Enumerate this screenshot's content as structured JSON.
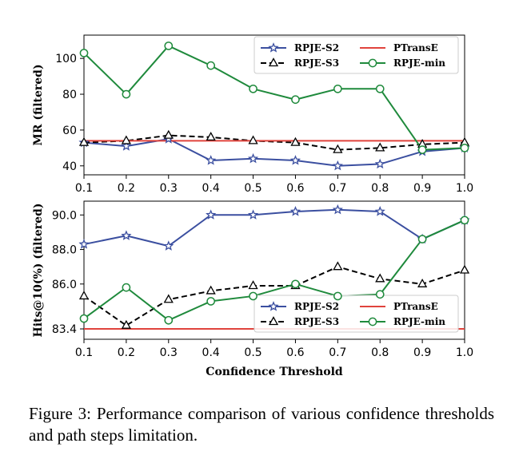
{
  "chart_data": [
    {
      "type": "line",
      "ylabel": "MR (filtered)",
      "xlabel": "",
      "x": [
        0.1,
        0.2,
        0.3,
        0.4,
        0.5,
        0.6,
        0.7,
        0.8,
        0.9,
        1.0
      ],
      "x_tick_labels": [
        "0.1",
        "0.2",
        "0.3",
        "0.4",
        "0.5",
        "0.6",
        "0.7",
        "0.8",
        "0.9",
        "1.0"
      ],
      "xlim": [
        0.1,
        1.0
      ],
      "ylim": [
        35,
        113
      ],
      "y_ticks": [
        40,
        60,
        80,
        100
      ],
      "y_tick_labels": [
        "40",
        "60",
        "80",
        "100"
      ],
      "legend_position": "top-right",
      "series": [
        {
          "name": "RPJE-S2",
          "color": "#3b4fa0",
          "marker": "star",
          "dash": "solid",
          "values": [
            53,
            51,
            55,
            43,
            44,
            43,
            40,
            41,
            48,
            50
          ]
        },
        {
          "name": "RPJE-S3",
          "color": "#000000",
          "marker": "triangle",
          "dash": "dashed",
          "values": [
            53,
            54,
            57,
            56,
            54,
            53,
            49,
            50,
            52,
            53
          ]
        },
        {
          "name": "PTransE",
          "color": "#e0433c",
          "marker": "none",
          "dash": "solid",
          "values": [
            54,
            54,
            54,
            54,
            54,
            54,
            54,
            54,
            54,
            54
          ]
        },
        {
          "name": "RPJE-min",
          "color": "#1f8a3c",
          "marker": "circle",
          "dash": "solid",
          "values": [
            103,
            80,
            107,
            96,
            83,
            77,
            83,
            83,
            49,
            50
          ]
        }
      ]
    },
    {
      "type": "line",
      "ylabel": "Hits@10(%) (filtered)",
      "xlabel": "Confidence Threshold",
      "x": [
        0.1,
        0.2,
        0.3,
        0.4,
        0.5,
        0.6,
        0.7,
        0.8,
        0.9,
        1.0
      ],
      "x_tick_labels": [
        "0.1",
        "0.2",
        "0.3",
        "0.4",
        "0.5",
        "0.6",
        "0.7",
        "0.8",
        "0.9",
        "1.0"
      ],
      "xlim": [
        0.1,
        1.0
      ],
      "ylim": [
        82.8,
        90.8
      ],
      "y_ticks": [
        83.4,
        86.0,
        88.0,
        90.0
      ],
      "y_tick_labels": [
        "83.4",
        "86.0",
        "88.0",
        "90.0"
      ],
      "legend_position": "bottom-right",
      "series": [
        {
          "name": "RPJE-S2",
          "color": "#3b4fa0",
          "marker": "star",
          "dash": "solid",
          "values": [
            88.3,
            88.8,
            88.2,
            90.0,
            90.0,
            90.2,
            90.3,
            90.2,
            88.6,
            89.7
          ]
        },
        {
          "name": "RPJE-S3",
          "color": "#000000",
          "marker": "triangle",
          "dash": "dashed",
          "values": [
            85.3,
            83.6,
            85.1,
            85.6,
            85.9,
            85.9,
            87.0,
            86.3,
            86.0,
            86.8
          ]
        },
        {
          "name": "PTransE",
          "color": "#e0433c",
          "marker": "none",
          "dash": "solid",
          "values": [
            83.4,
            83.4,
            83.4,
            83.4,
            83.4,
            83.4,
            83.4,
            83.4,
            83.4,
            83.4
          ]
        },
        {
          "name": "RPJE-min",
          "color": "#1f8a3c",
          "marker": "circle",
          "dash": "solid",
          "values": [
            84.0,
            85.8,
            83.9,
            85.0,
            85.3,
            86.0,
            85.3,
            85.4,
            88.6,
            89.7
          ]
        }
      ]
    }
  ],
  "caption": "Figure 3: Performance comparison of various confidence thresholds and path steps limitation."
}
